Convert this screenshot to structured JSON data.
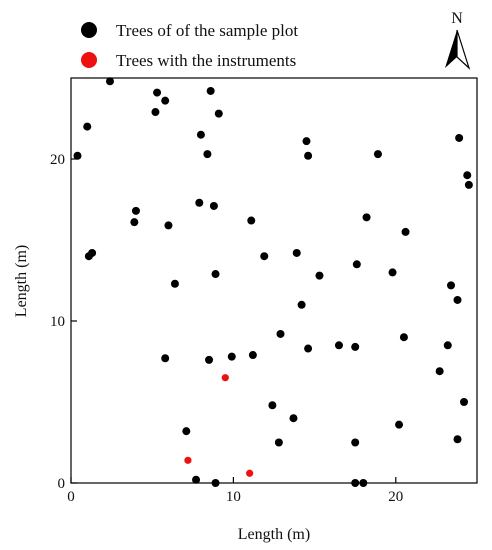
{
  "chart_data": {
    "type": "scatter",
    "xlabel": "Length (m)",
    "ylabel": "Length (m)",
    "xlim": [
      0,
      25
    ],
    "ylim": [
      0,
      25
    ],
    "x_ticks": [
      0,
      10,
      20
    ],
    "y_ticks": [
      0,
      10,
      20
    ],
    "grid": false,
    "legend_position": "top-left, above plot",
    "north_label": "N",
    "series": [
      {
        "name": "Trees of of the sample plot",
        "color": "#000000",
        "points": [
          [
            2.4,
            24.8
          ],
          [
            5.3,
            24.1
          ],
          [
            8.6,
            24.2
          ],
          [
            5.2,
            22.9
          ],
          [
            5.8,
            23.6
          ],
          [
            9.1,
            22.8
          ],
          [
            1.0,
            22.0
          ],
          [
            8.0,
            21.5
          ],
          [
            14.5,
            21.1
          ],
          [
            23.9,
            21.3
          ],
          [
            0.4,
            20.2
          ],
          [
            8.4,
            20.3
          ],
          [
            14.6,
            20.2
          ],
          [
            18.9,
            20.3
          ],
          [
            24.4,
            19.0
          ],
          [
            24.5,
            18.4
          ],
          [
            7.9,
            17.3
          ],
          [
            8.8,
            17.1
          ],
          [
            4.0,
            16.8
          ],
          [
            3.9,
            16.1
          ],
          [
            6.0,
            15.9
          ],
          [
            11.1,
            16.2
          ],
          [
            18.2,
            16.4
          ],
          [
            20.6,
            15.5
          ],
          [
            1.3,
            14.2
          ],
          [
            1.1,
            14.0
          ],
          [
            11.9,
            14.0
          ],
          [
            13.9,
            14.2
          ],
          [
            17.6,
            13.5
          ],
          [
            8.9,
            12.9
          ],
          [
            15.3,
            12.8
          ],
          [
            19.8,
            13.0
          ],
          [
            6.4,
            12.3
          ],
          [
            23.4,
            12.2
          ],
          [
            23.8,
            11.3
          ],
          [
            14.2,
            11.0
          ],
          [
            12.9,
            9.2
          ],
          [
            20.5,
            9.0
          ],
          [
            16.5,
            8.5
          ],
          [
            17.5,
            8.4
          ],
          [
            14.6,
            8.3
          ],
          [
            23.2,
            8.5
          ],
          [
            11.2,
            7.9
          ],
          [
            9.9,
            7.8
          ],
          [
            5.8,
            7.7
          ],
          [
            8.5,
            7.6
          ],
          [
            22.7,
            6.9
          ],
          [
            24.2,
            5.0
          ],
          [
            12.4,
            4.8
          ],
          [
            13.7,
            4.0
          ],
          [
            20.2,
            3.6
          ],
          [
            7.1,
            3.2
          ],
          [
            12.8,
            2.5
          ],
          [
            17.5,
            2.5
          ],
          [
            23.8,
            2.7
          ],
          [
            7.7,
            0.2
          ],
          [
            8.9,
            0.0
          ],
          [
            17.5,
            0.0
          ],
          [
            18.0,
            0.0
          ]
        ]
      },
      {
        "name": "Trees with the instruments",
        "color": "#ee1111",
        "points": [
          [
            9.5,
            6.5
          ],
          [
            7.2,
            1.4
          ],
          [
            11.0,
            0.6
          ]
        ]
      }
    ]
  }
}
